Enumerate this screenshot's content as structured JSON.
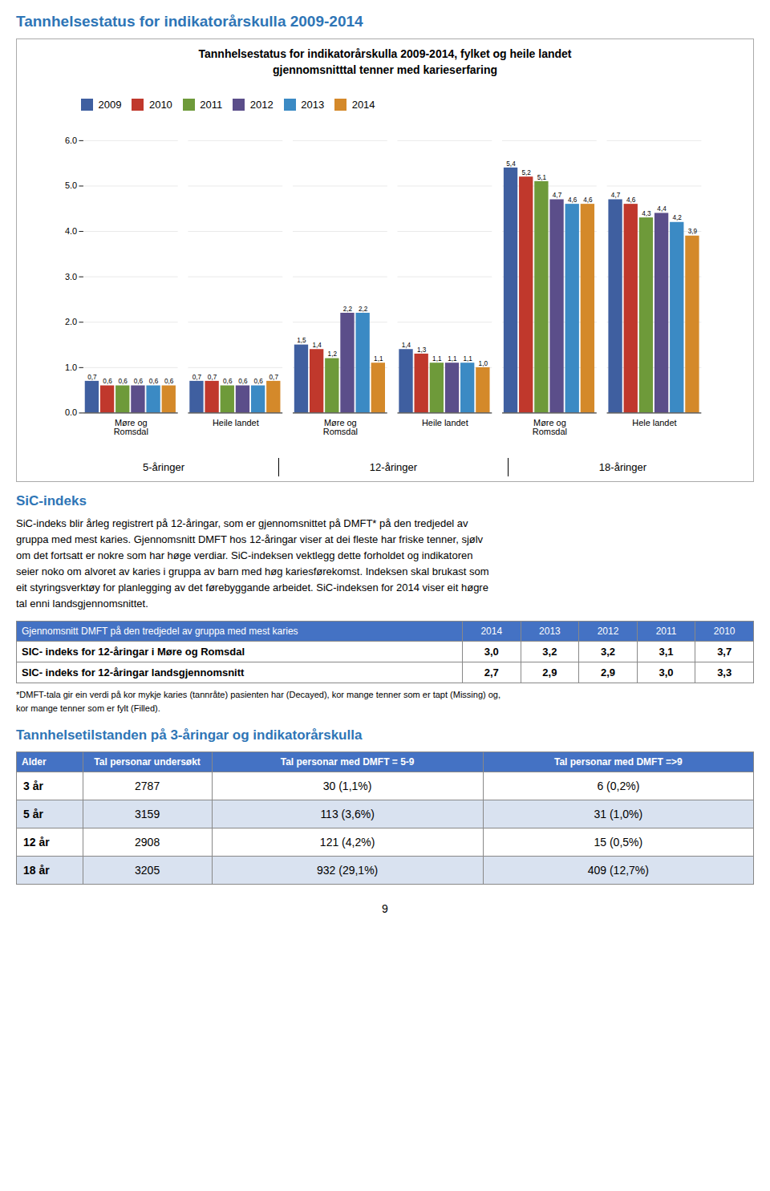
{
  "page_title": "Tannhelsestatus for indikatorårskulla 2009-2014",
  "chart_data": {
    "type": "bar",
    "title": "Tannhelsestatus for indikatorårskulla 2009-2014, fylket og heile landet\ngjennomsnitttal tenner med karieserfaring",
    "categories": [
      "Møre og\nRomsdal",
      "Heile landet",
      "Møre og\nRomsdal",
      "Heile landet",
      "Møre og\nRomsdal",
      "Hele landet"
    ],
    "age_labels": [
      "5-åringer",
      "12-åringer",
      "18-åringer"
    ],
    "series": [
      {
        "name": "2009",
        "color": "#3F5FA0",
        "values": [
          0.7,
          0.7,
          1.5,
          1.4,
          5.4,
          4.7
        ],
        "value_labels": [
          "0,7",
          "0,7",
          "1,5",
          "1,4",
          "5,4",
          "4,7"
        ]
      },
      {
        "name": "2010",
        "color": "#C0382C",
        "values": [
          0.6,
          0.7,
          1.4,
          1.3,
          5.2,
          4.6
        ],
        "value_labels": [
          "0,6",
          "0,7",
          "1,4",
          "1,3",
          "5,2",
          "4,6"
        ]
      },
      {
        "name": "2011",
        "color": "#6E9A3A",
        "values": [
          0.6,
          0.6,
          1.2,
          1.1,
          5.1,
          4.3
        ],
        "value_labels": [
          "0,6",
          "0,6",
          "1,2",
          "1,1",
          "5,1",
          "4,3"
        ]
      },
      {
        "name": "2012",
        "color": "#5B4E8A",
        "values": [
          0.6,
          0.6,
          2.2,
          1.1,
          4.7,
          4.4
        ],
        "value_labels": [
          "0,6",
          "0,6",
          "2,2",
          "1,1",
          "4,7",
          "4,4"
        ]
      },
      {
        "name": "2013",
        "color": "#3B8AC4",
        "values": [
          0.6,
          0.6,
          2.2,
          1.1,
          4.6,
          4.2
        ],
        "value_labels": [
          "0,6",
          "0,6",
          "2,2",
          "1,1",
          "4,6",
          "4,2"
        ]
      },
      {
        "name": "2014",
        "color": "#D4892A",
        "values": [
          0.6,
          0.7,
          1.1,
          1.0,
          4.6,
          3.9
        ],
        "value_labels": [
          "0,6",
          "0,7",
          "1,1",
          "1,0",
          "4,6",
          "3,9"
        ]
      }
    ],
    "ylim": [
      0,
      6
    ],
    "yticks": [
      0,
      1,
      2,
      3,
      4,
      5,
      6
    ],
    "grid": true,
    "data_labels": true,
    "legend": "top"
  },
  "sic_title": "SiC-indeks",
  "sic_text": [
    "SiC-indeks blir årleg registrert på 12-åringar, som er gjennomsnittet på DMFT* på den tredjedel av",
    "gruppa med mest karies. Gjennomsnitt DMFT hos 12-åringar viser at dei fleste har friske tenner, sjølv",
    "om det fortsatt er nokre som har høge verdiar. SiC-indeksen vektlegg dette forholdet og indikatoren",
    "seier noko om alvoret av karies i gruppa av barn med høg kariesførekomst. Indeksen skal brukast som",
    "eit styringsverktøy for planlegging av det førebyggande arbeidet. SiC-indeksen for 2014 viser eit høgre",
    "tal enni landsgjennomsnittet."
  ],
  "sic_table": {
    "header": [
      "Gjennomsnitt DMFT på den tredjedel av gruppa med mest karies",
      "2014",
      "2013",
      "2012",
      "2011",
      "2010"
    ],
    "rows": [
      [
        "SIC- indeks for 12-åringar i Møre og Romsdal",
        "3,0",
        "3,2",
        "3,2",
        "3,1",
        "3,7"
      ],
      [
        "SIC- indeks for 12-åringar landsgjennomsnitt",
        "2,7",
        "2,9",
        "2,9",
        "3,0",
        "3,3"
      ]
    ],
    "header_color": "#4472C4"
  },
  "dmft_note": "*DMFT-tala gir ein verdi på kor mykje karies (tannråte) pasienten har (Decayed), kor mange tenner som er tapt (Missing) og,\nkor mange tenner som er fylt (Filled).",
  "table2_title": "Tannhelsetilstanden på 3-åringar og indikatorårskulla",
  "table2": {
    "header": [
      "Alder",
      "Tal personar undersøkt",
      "Tal personar med DMFT = 5-9",
      "Tal personar med DMFT =>9"
    ],
    "rows": [
      [
        "3 år",
        "2787",
        "30  (1,1%)",
        "6  (0,2%)"
      ],
      [
        "5 år",
        "3159",
        "113  (3,6%)",
        "31  (1,0%)"
      ],
      [
        "12 år",
        "2908",
        "121 (4,2%)",
        "15  (0,5%)"
      ],
      [
        "18 år",
        "3205",
        "932 (29,1%)",
        "409 (12,7%)"
      ]
    ],
    "header_color": "#4472C4"
  },
  "page_number": "9"
}
